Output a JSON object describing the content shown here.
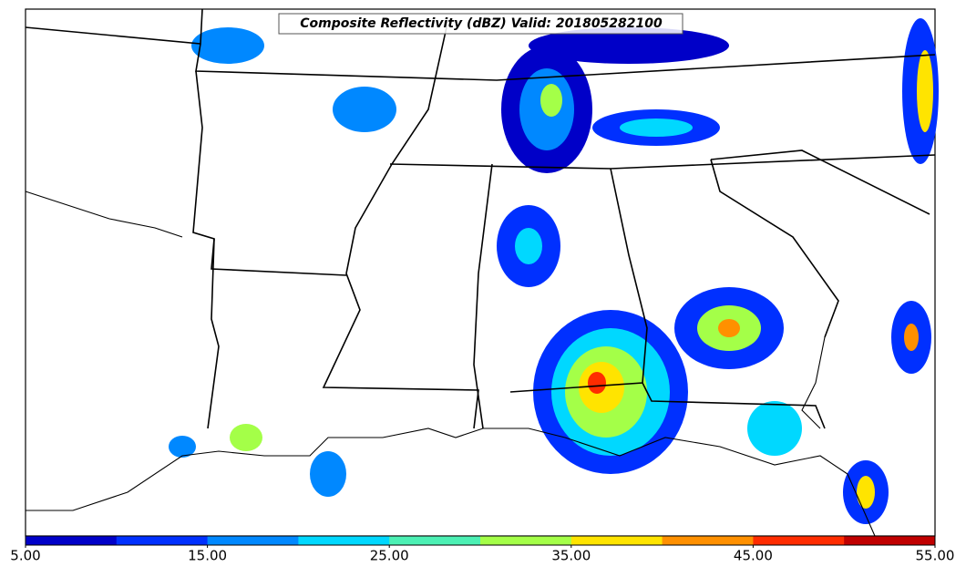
{
  "map": {
    "title": "Composite Reflectivity (dBZ) Valid: 201805282100",
    "colorbar": {
      "range": [
        5,
        55
      ],
      "colors": [
        "#0000c8",
        "#0030ff",
        "#0088ff",
        "#00d8ff",
        "#4cf0b4",
        "#a4ff48",
        "#ffe400",
        "#ff9000",
        "#ff2c00",
        "#c00000"
      ],
      "ticks": [
        {
          "value": 5,
          "label": "5.00"
        },
        {
          "value": 15,
          "label": "15.00"
        },
        {
          "value": 25,
          "label": "25.00"
        },
        {
          "value": 35,
          "label": "35.00"
        },
        {
          "value": 45,
          "label": "45.00"
        },
        {
          "value": 55,
          "label": "55.00"
        }
      ]
    }
  }
}
